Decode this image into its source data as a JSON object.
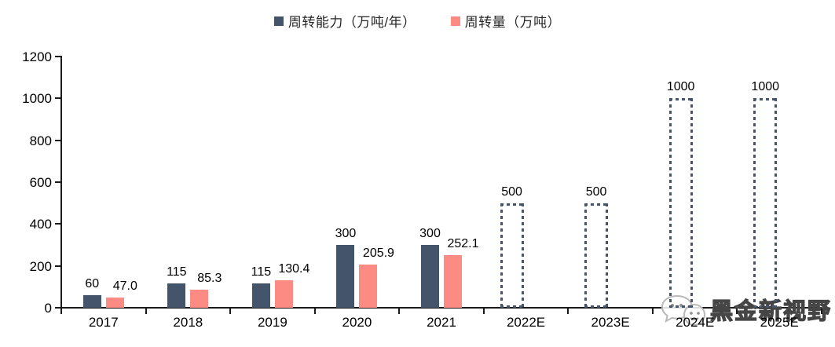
{
  "legend": [
    {
      "label": "周转能力（万吨/年）",
      "color": "#44546A"
    },
    {
      "label": "周转量（万吨）",
      "color": "#FC8B84"
    }
  ],
  "watermark": {
    "text": "黑金新视野"
  },
  "chart_data": {
    "type": "bar",
    "title": "",
    "xlabel": "",
    "ylabel": "",
    "categories": [
      "2017",
      "2018",
      "2019",
      "2020",
      "2021",
      "2022E",
      "2023E",
      "2024E",
      "2025E"
    ],
    "series": [
      {
        "name": "周转能力（万吨/年）",
        "color": "#44546A",
        "values": [
          60,
          115,
          115,
          300,
          300,
          500,
          500,
          1000,
          1000
        ],
        "labels": [
          "60",
          "115",
          "115",
          "300",
          "300",
          "500",
          "500",
          "1000",
          "1000"
        ],
        "styles": [
          "solid",
          "solid",
          "solid",
          "solid",
          "solid",
          "dotted",
          "dotted",
          "dotted",
          "dotted"
        ]
      },
      {
        "name": "周转量（万吨）",
        "color": "#FC8B84",
        "values": [
          47.0,
          85.3,
          130.4,
          205.9,
          252.1,
          null,
          null,
          null,
          null
        ],
        "labels": [
          "47.0",
          "85.3",
          "130.4",
          "205.9",
          "252.1",
          "",
          "",
          "",
          ""
        ],
        "styles": [
          "solid",
          "solid",
          "solid",
          "solid",
          "solid",
          null,
          null,
          null,
          null
        ]
      }
    ],
    "ylim": [
      0,
      1200
    ],
    "yticks": [
      0,
      200,
      400,
      600,
      800,
      1000,
      1200
    ],
    "grid": false,
    "legend_position": "top-center"
  }
}
